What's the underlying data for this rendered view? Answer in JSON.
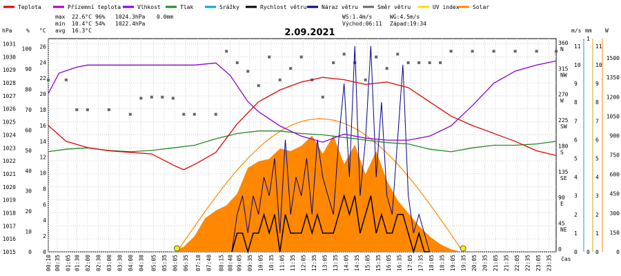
{
  "chart_data": {
    "type": "line",
    "title": "2.09.2021",
    "legend": {
      "placement": "top",
      "items": [
        {
          "label": "Teplota",
          "color": "#dd0000"
        },
        {
          "label": "Přízemní teplota",
          "color": "#aa00aa"
        },
        {
          "label": "Vlhkost",
          "color": "#8800cc"
        },
        {
          "label": "Tlak",
          "color": "#228822"
        },
        {
          "label": "Srážky",
          "color": "#00aacc"
        },
        {
          "label": "Rychlost větru",
          "color": "#000000"
        },
        {
          "label": "Náraz větru",
          "color": "#000088"
        },
        {
          "label": "Směr větru",
          "color": "#666666"
        },
        {
          "label": "UV index",
          "color": "#ffdd00"
        },
        {
          "label": "Solar",
          "color": "#ff8800"
        }
      ]
    },
    "stats": {
      "max_label": "max",
      "max_temp": "22.6°C",
      "max_hum": "96%",
      "max_press": "1024.3hPa",
      "max_rain": "0.0mm",
      "min_label": "min",
      "min_temp": "10.4°C",
      "min_hum": "54%",
      "min_press": "1022.4hPa",
      "avg_label": "avg",
      "avg_temp": "16.3°C",
      "ws": "WS:1.4m/s",
      "wg": "WG:4.5m/s",
      "sunrise": "Východ:06:11",
      "sunset": "Západ:19:34"
    },
    "axes": {
      "hpa": {
        "unit": "hPa",
        "ticks": [
          "1031",
          "1030",
          "1029",
          "1028",
          "1027",
          "1026",
          "1025",
          "1024",
          "1023",
          "1022",
          "1021",
          "1020",
          "1019",
          "1018",
          "1017",
          "1016",
          "1015"
        ]
      },
      "pct": {
        "unit": "%",
        "ticks": [
          "100",
          "90",
          "80",
          "70",
          "60",
          "50",
          "40",
          "30",
          "20",
          "10",
          "0"
        ]
      },
      "temp": {
        "unit": "°C",
        "ticks": [
          "26",
          "24",
          "22",
          "20",
          "18",
          "16",
          "14",
          "12",
          "10",
          "8",
          "6",
          "4",
          "2",
          "0"
        ]
      },
      "dir": {
        "ticks": [
          "360",
          "315",
          "270",
          "225",
          "180",
          "135",
          "90",
          "45",
          "0"
        ],
        "letters": [
          "N",
          "NW",
          "W",
          "SW",
          "S",
          "SE",
          "E",
          "NE"
        ]
      },
      "ms": {
        "unit": "m/s",
        "ticks": [
          "11",
          "10",
          "9",
          "8",
          "7",
          "6",
          "5",
          "4",
          "3",
          "2",
          "1",
          "0"
        ]
      },
      "mm": {
        "unit": "mm",
        "ticks": [
          "1",
          "0"
        ]
      },
      "uv": {
        "ticks": [
          "11",
          "10",
          "9",
          "8",
          "7",
          "6",
          "5",
          "4",
          "3",
          "2",
          "1",
          "0"
        ]
      },
      "w": {
        "unit": "W",
        "ticks": [
          "1500",
          "1350",
          "1200",
          "1050",
          "900",
          "750",
          "600",
          "450",
          "300",
          "150",
          "0"
        ]
      },
      "x_label": "čas",
      "x_ticks": [
        "00:10",
        "00:35",
        "01:05",
        "01:30",
        "02:00",
        "02:30",
        "03:00",
        "03:30",
        "04:00",
        "04:30",
        "05:05",
        "05:35",
        "06:05",
        "06:35",
        "07:10",
        "07:40",
        "08:15",
        "08:40",
        "09:05",
        "09:35",
        "10:05",
        "10:35",
        "11:05",
        "11:35",
        "12:05",
        "12:35",
        "13:05",
        "13:35",
        "14:05",
        "14:35",
        "15:05",
        "15:35",
        "16:05",
        "16:35",
        "17:05",
        "17:35",
        "18:05",
        "18:35",
        "19:05",
        "19:35",
        "20:05",
        "20:35",
        "21:05",
        "21:35",
        "22:05",
        "22:35",
        "23:05",
        "23:35"
      ]
    },
    "series": [
      {
        "name": "Teplota",
        "unit": "°C",
        "x": [
          "00:10",
          "01:00",
          "02:00",
          "03:00",
          "04:00",
          "05:00",
          "06:00",
          "06:30",
          "07:10",
          "08:00",
          "09:00",
          "10:00",
          "11:00",
          "12:00",
          "13:00",
          "14:00",
          "15:00",
          "16:00",
          "17:00",
          "18:00",
          "19:00",
          "20:00",
          "21:00",
          "22:00",
          "23:00",
          "23:55"
        ],
        "values": [
          16.0,
          14.0,
          13.2,
          12.8,
          12.6,
          12.4,
          11.0,
          10.4,
          11.3,
          12.6,
          16.2,
          19.0,
          20.5,
          21.5,
          22.1,
          21.8,
          21.2,
          21.5,
          20.8,
          19.0,
          17.2,
          16.0,
          15.0,
          14.0,
          12.8,
          12.2
        ]
      },
      {
        "name": "Vlhkost",
        "unit": "%",
        "x": [
          "00:10",
          "00:40",
          "01:30",
          "02:00",
          "03:00",
          "04:00",
          "05:00",
          "06:00",
          "07:00",
          "08:00",
          "08:40",
          "09:30",
          "10:00",
          "11:00",
          "12:00",
          "13:00",
          "14:00",
          "15:00",
          "16:00",
          "17:00",
          "18:00",
          "19:00",
          "20:00",
          "21:00",
          "22:00",
          "23:00",
          "23:55"
        ],
        "values": [
          78,
          88,
          91,
          92,
          92,
          92,
          92,
          92,
          92,
          93,
          87,
          74,
          69,
          62,
          57,
          54,
          58,
          56,
          55,
          55,
          57,
          62,
          72,
          83,
          89,
          92,
          94
        ]
      },
      {
        "name": "Tlak",
        "unit": "hPa",
        "x": [
          "00:10",
          "01:00",
          "02:00",
          "03:00",
          "04:00",
          "05:00",
          "06:00",
          "07:00",
          "08:00",
          "09:00",
          "10:00",
          "11:00",
          "12:00",
          "13:00",
          "14:00",
          "15:00",
          "16:00",
          "17:00",
          "18:00",
          "19:00",
          "20:00",
          "21:00",
          "22:00",
          "23:00",
          "23:55"
        ],
        "values": [
          1022.7,
          1022.9,
          1023.0,
          1022.8,
          1022.7,
          1022.8,
          1023.0,
          1023.2,
          1023.7,
          1024.1,
          1024.3,
          1024.3,
          1024.1,
          1024.0,
          1023.8,
          1023.6,
          1023.4,
          1023.3,
          1022.9,
          1022.7,
          1023.0,
          1023.2,
          1023.2,
          1023.3,
          1023.5
        ]
      },
      {
        "name": "Solar",
        "unit": "W",
        "x": [
          "06:00",
          "06:30",
          "07:00",
          "07:30",
          "08:00",
          "08:30",
          "09:00",
          "09:30",
          "10:00",
          "10:30",
          "11:00",
          "11:30",
          "12:00",
          "12:30",
          "13:00",
          "13:30",
          "14:00",
          "14:30",
          "15:00",
          "15:30",
          "16:00",
          "16:30",
          "17:00",
          "17:30",
          "18:00",
          "18:30",
          "19:00",
          "19:30"
        ],
        "values": [
          0,
          40,
          120,
          260,
          320,
          360,
          450,
          650,
          700,
          720,
          800,
          780,
          820,
          900,
          760,
          900,
          680,
          830,
          600,
          780,
          550,
          400,
          300,
          200,
          120,
          60,
          20,
          0
        ]
      },
      {
        "name": "Náraz větru",
        "unit": "m/s",
        "x": [
          "08:45",
          "09:00",
          "09:15",
          "09:30",
          "09:45",
          "10:00",
          "10:15",
          "10:30",
          "10:45",
          "11:00",
          "11:15",
          "11:30",
          "11:45",
          "12:00",
          "12:15",
          "12:30",
          "12:45",
          "13:00",
          "13:15",
          "13:30",
          "13:45",
          "14:00",
          "14:15",
          "14:30",
          "14:45",
          "15:00",
          "15:15",
          "15:30",
          "15:45",
          "16:00",
          "16:15",
          "16:30",
          "16:45",
          "17:00",
          "17:15",
          "17:30",
          "17:45",
          "18:00"
        ],
        "values": [
          0,
          2,
          3,
          1,
          3,
          2,
          4,
          3,
          5,
          1,
          6,
          2,
          4,
          3,
          5,
          2,
          6,
          4,
          3,
          2,
          6,
          9,
          4,
          11,
          3,
          6,
          11,
          4,
          8,
          3,
          2,
          6,
          10,
          3,
          1,
          2,
          1,
          0
        ]
      },
      {
        "name": "Rychlost větru",
        "unit": "m/s",
        "x": [
          "08:45",
          "09:00",
          "09:15",
          "09:30",
          "09:45",
          "10:00",
          "10:15",
          "10:30",
          "10:45",
          "11:00",
          "11:15",
          "11:30",
          "11:45",
          "12:00",
          "12:15",
          "12:30",
          "12:45",
          "13:00",
          "13:15",
          "13:30",
          "13:45",
          "14:00",
          "14:15",
          "14:30",
          "14:45",
          "15:00",
          "15:15",
          "15:30",
          "15:45",
          "16:00",
          "16:15",
          "16:30",
          "16:45",
          "17:00",
          "17:15",
          "17:30",
          "17:45",
          "18:00"
        ],
        "values": [
          0,
          1,
          1,
          0,
          1,
          1,
          2,
          1,
          2,
          0,
          2,
          1,
          1,
          1,
          2,
          1,
          2,
          1,
          1,
          1,
          2,
          3,
          2,
          3,
          1,
          2,
          3,
          1,
          2,
          1,
          1,
          2,
          2,
          1,
          0,
          1,
          0,
          0
        ]
      },
      {
        "name": "Směr větru",
        "unit": "°",
        "x": [
          "00:10",
          "01:00",
          "01:30",
          "02:00",
          "03:00",
          "04:00",
          "04:30",
          "05:00",
          "05:30",
          "06:00",
          "06:30",
          "07:00",
          "08:00",
          "08:30",
          "09:00",
          "09:30",
          "10:00",
          "10:30",
          "11:00",
          "11:30",
          "12:00",
          "12:30",
          "13:00",
          "13:30",
          "14:00",
          "14:30",
          "15:00",
          "15:30",
          "16:00",
          "16:30",
          "17:00",
          "17:30",
          "18:00",
          "18:30",
          "19:00",
          "20:00",
          "21:00",
          "22:00",
          "23:00",
          "23:55"
        ],
        "values": [
          300,
          300,
          248,
          248,
          248,
          240,
          268,
          270,
          270,
          268,
          240,
          240,
          240,
          350,
          330,
          315,
          290,
          340,
          300,
          320,
          340,
          300,
          270,
          330,
          345,
          330,
          300,
          340,
          320,
          345,
          330,
          330,
          330,
          330,
          350,
          350,
          350,
          350,
          350,
          350
        ]
      },
      {
        "name": "UV index",
        "x": [
          "06:11",
          "19:34"
        ],
        "values": [
          0,
          0
        ]
      }
    ]
  }
}
